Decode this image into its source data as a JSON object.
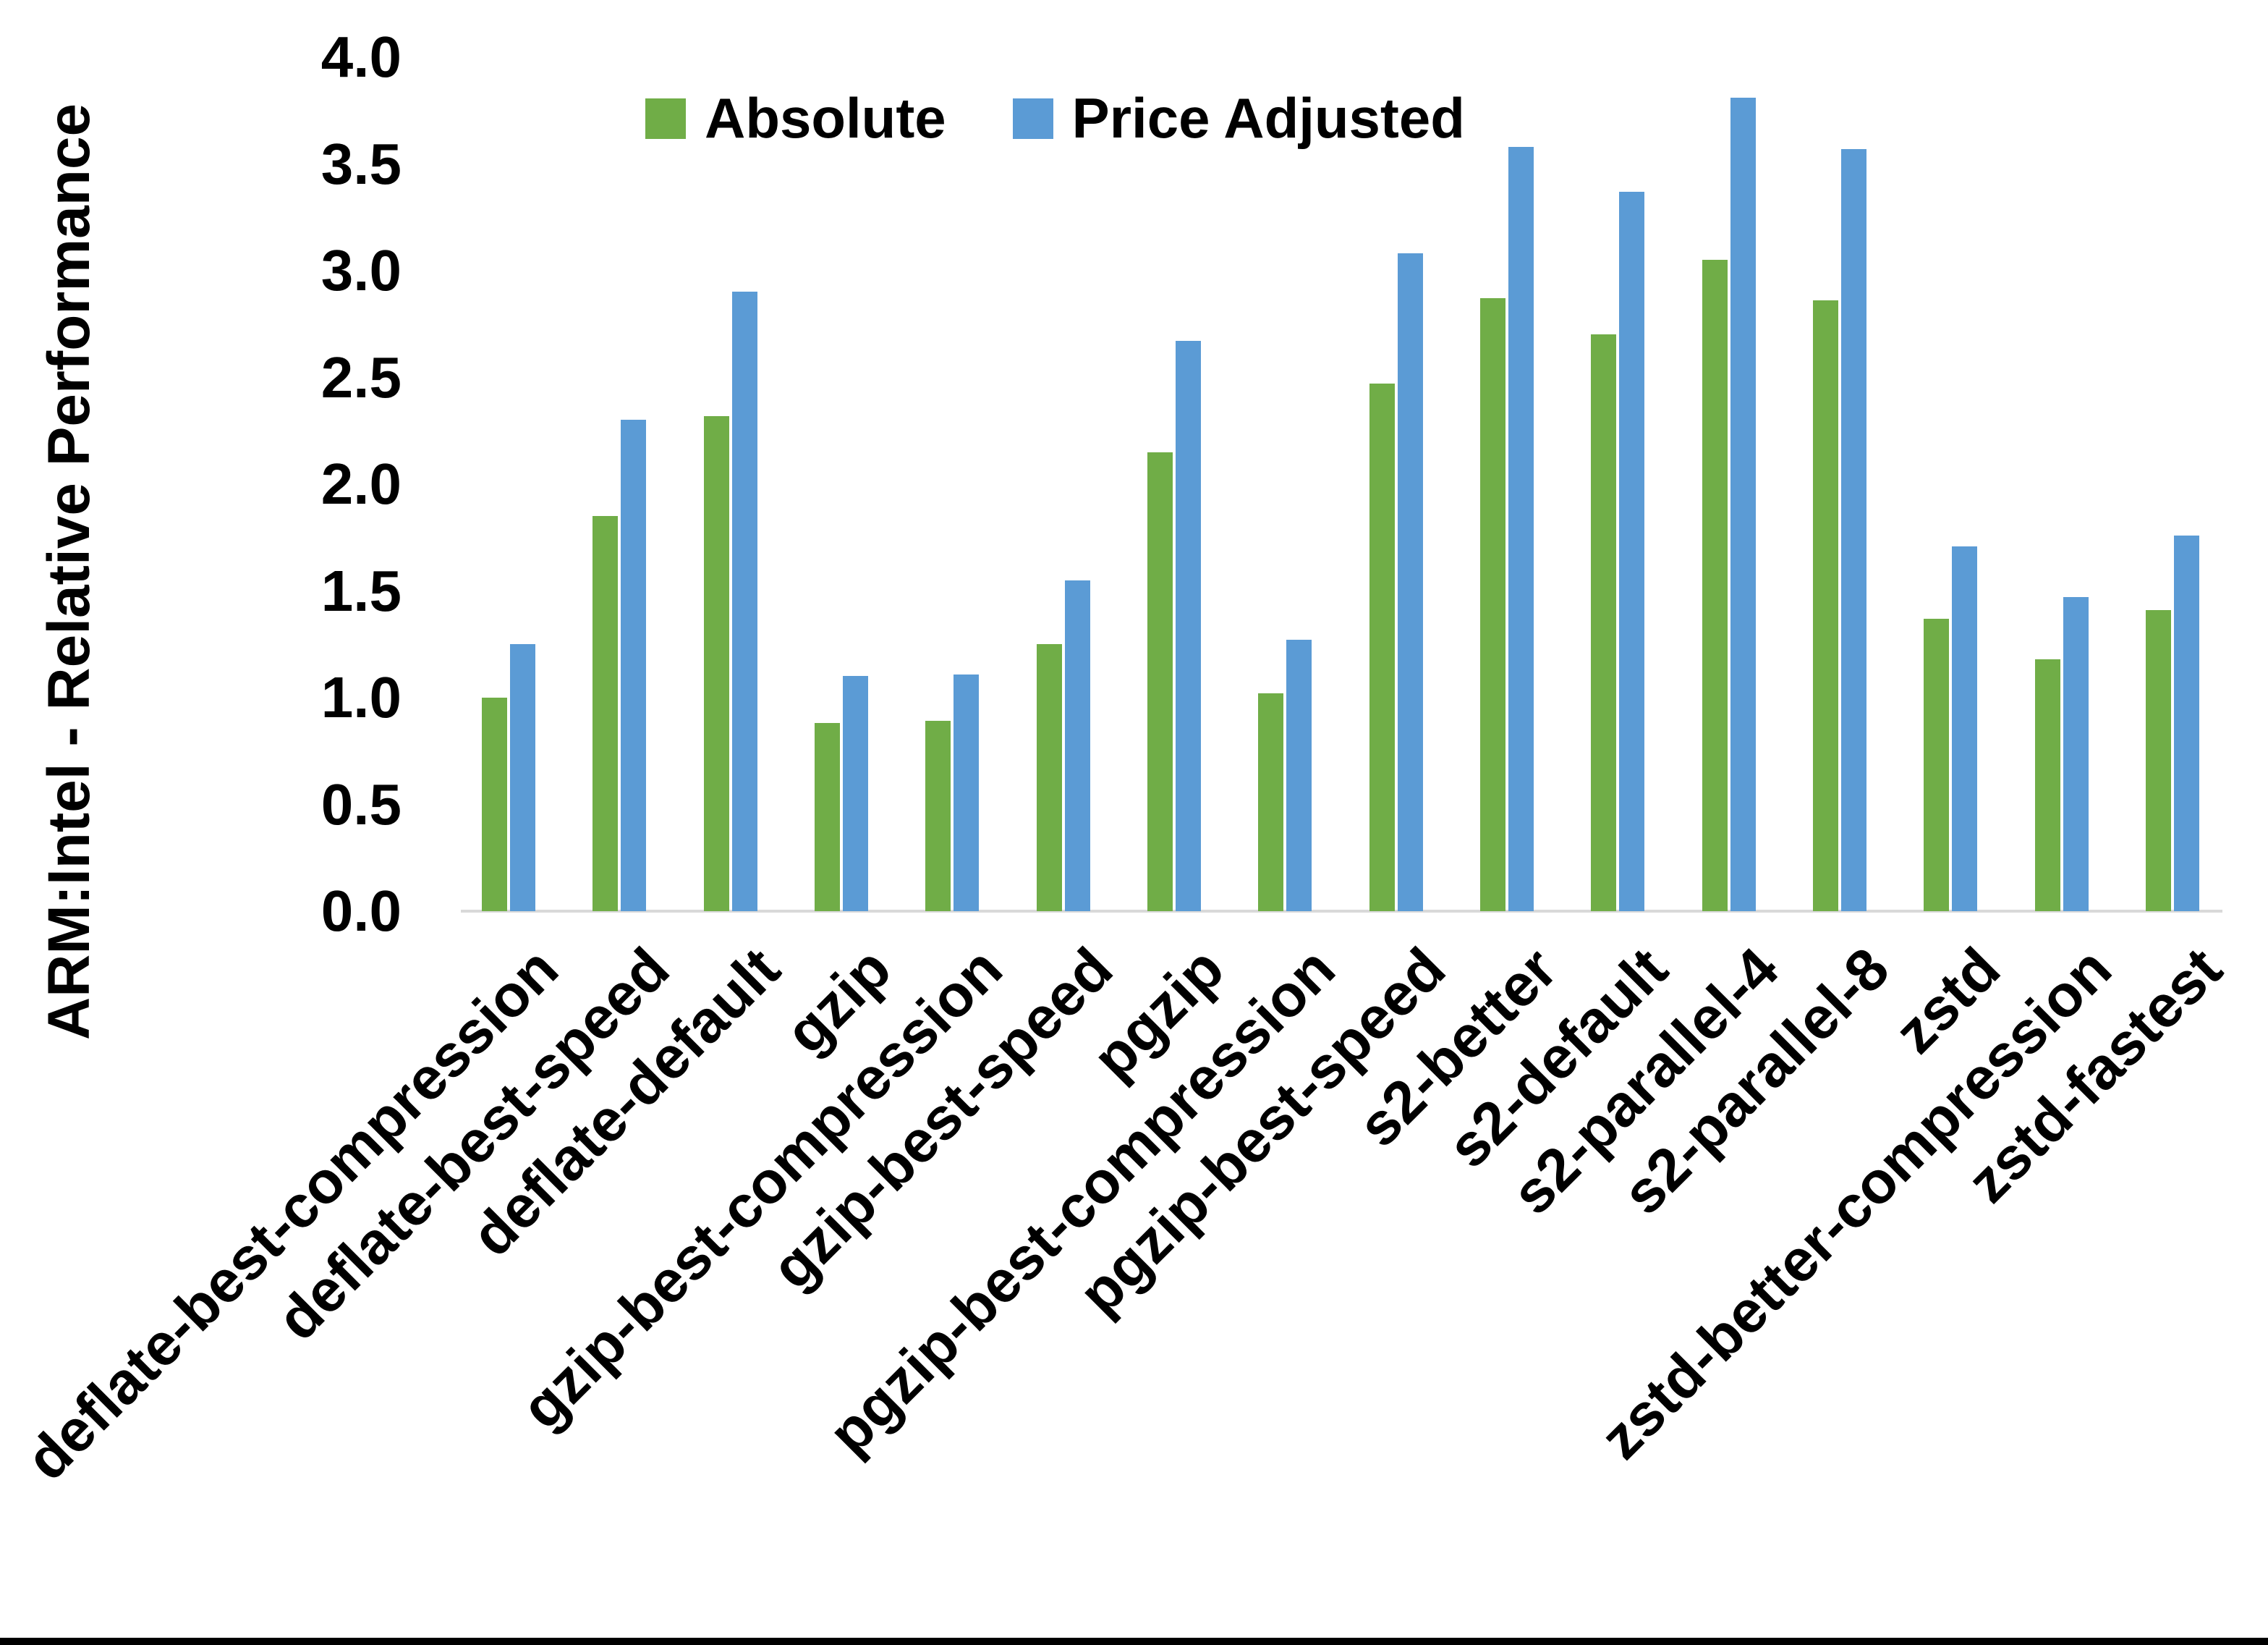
{
  "chart_data": {
    "type": "bar",
    "title": "",
    "xlabel": "",
    "ylabel": "ARM:Intel - Relative Performance",
    "ylim": [
      0.0,
      4.0
    ],
    "ytick_step": 0.5,
    "ytick_labels": [
      "0.0",
      "0.5",
      "1.0",
      "1.5",
      "2.0",
      "2.5",
      "3.0",
      "3.5",
      "4.0"
    ],
    "grid": false,
    "legend_position": "top-center",
    "categories": [
      "deflate-best-compression",
      "deflate-best-speed",
      "deflate-default",
      "gzip",
      "gzip-best-compression",
      "gzip-best-speed",
      "pgzip",
      "pgzip-best-compression",
      "pgzip-best-speed",
      "s2-better",
      "s2-default",
      "s2-parallel-4",
      "s2-parallel-8",
      "zstd",
      "zstd-better-compression",
      "zstd-fastest"
    ],
    "series": [
      {
        "name": "Absolute",
        "color": "#70AD47",
        "values": [
          1.0,
          1.85,
          2.32,
          0.88,
          0.89,
          1.25,
          2.15,
          1.02,
          2.47,
          2.87,
          2.7,
          3.05,
          2.86,
          1.37,
          1.18,
          1.41
        ]
      },
      {
        "name": "Price Adjusted",
        "color": "#5B9BD5",
        "values": [
          1.25,
          2.3,
          2.9,
          1.1,
          1.11,
          1.55,
          2.67,
          1.27,
          3.08,
          3.58,
          3.37,
          3.81,
          3.57,
          1.71,
          1.47,
          1.76
        ]
      }
    ],
    "colors": {
      "axis_line": "#d9d9d9",
      "text": "#000000",
      "background": "#ffffff",
      "bottom_border": "#000000"
    }
  }
}
